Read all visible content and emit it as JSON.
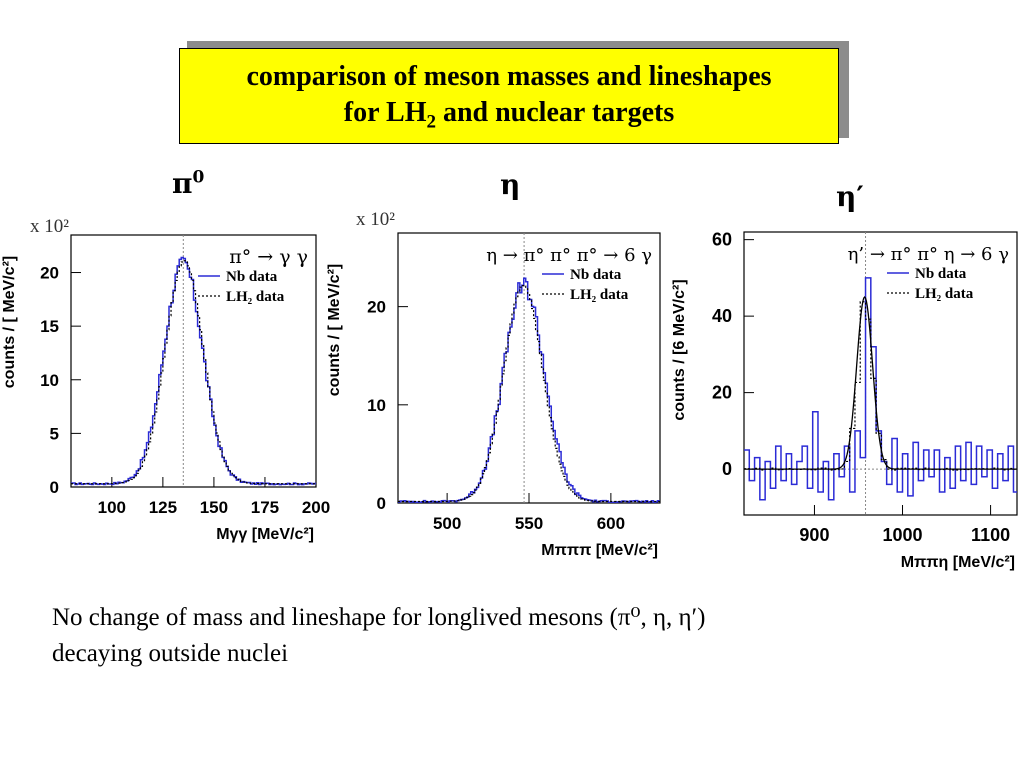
{
  "title": {
    "line1": "comparison of meson masses and lineshapes",
    "line2_pre": "for LH",
    "line2_sub": "2",
    "line2_post": " and nuclear targets"
  },
  "panel_labels": [
    {
      "base": "π",
      "sup": "0"
    },
    {
      "base": "η",
      "sup": ""
    },
    {
      "base": "η′",
      "sup": ""
    }
  ],
  "conclusion": {
    "line1": "No change of mass and lineshape for longlived mesons (π⁰, η, η′)",
    "line2": "decaying outside nuclei"
  },
  "colors": {
    "nb": "#2b2bd6",
    "lh2": "#000000",
    "fit": "#000000",
    "title_bg": "#ffff00"
  },
  "chart_data": [
    {
      "type": "line",
      "multiplier": "x 10²",
      "reaction": "π° → γ γ",
      "xlabel": "Mγγ [MeV/c²]",
      "ylabel": "counts / [ MeV/c²]",
      "xlim": [
        80,
        200
      ],
      "ylim": [
        0,
        23.5
      ],
      "xticks": [
        100,
        125,
        150,
        175,
        200
      ],
      "xtick_labels": [
        "100",
        "125",
        "150",
        "175",
        "200"
      ],
      "yticks": [
        0,
        5,
        10,
        15,
        20
      ],
      "ytick_labels": [
        "0",
        "5",
        "10",
        "15",
        "20"
      ],
      "peak_line": 135,
      "series": [
        {
          "name": "Nb data",
          "shape": "gauss",
          "mean": 135,
          "sigma": 9.5,
          "amp": 20.6,
          "bg": 0.3,
          "bin": 1,
          "noise": 0.35
        },
        {
          "name": "LH₂ data",
          "shape": "gauss",
          "mean": 135.5,
          "sigma": 9.3,
          "amp": 20.8,
          "bg": 0.3,
          "bin": 1
        }
      ]
    },
    {
      "type": "line",
      "multiplier": "x 10²",
      "reaction": "η → π° π° π° → 6 γ",
      "xlabel": "Mπππ [MeV/c²]",
      "ylabel": "counts / [ MeV/c²]",
      "xlim": [
        470,
        630
      ],
      "ylim": [
        0,
        27.5
      ],
      "xticks": [
        500,
        550,
        600
      ],
      "xtick_labels": [
        "500",
        "550",
        "600"
      ],
      "yticks": [
        0,
        10,
        20
      ],
      "ytick_labels": [
        "0",
        "10",
        "20"
      ],
      "peak_line": 547,
      "series": [
        {
          "name": "Nb data",
          "shape": "gauss",
          "mean": 547,
          "sigma": 12.5,
          "amp": 22,
          "bg": 0.15,
          "bin": 1.2,
          "noise": 0.5
        },
        {
          "name": "LH₂ data",
          "shape": "gauss",
          "mean": 546.5,
          "sigma": 12,
          "amp": 22,
          "bg": 0.15,
          "bin": 1.2
        }
      ]
    },
    {
      "type": "line",
      "multiplier": "",
      "reaction": "η’ → π° π° η → 6 γ",
      "xlabel": "Mππη [MeV/c²]",
      "ylabel": "counts / [6 MeV/c²]",
      "xlim": [
        820,
        1130
      ],
      "ylim": [
        -12,
        62
      ],
      "xticks": [
        900,
        1000,
        1100
      ],
      "xtick_labels": [
        "900",
        "1000",
        "1100"
      ],
      "yticks": [
        0,
        20,
        40,
        60
      ],
      "ytick_labels": [
        "0",
        "20",
        "40",
        "60"
      ],
      "peak_line": 958,
      "nb_bins": {
        "x0": 820,
        "width": 6,
        "values": [
          5,
          -3,
          3,
          -8,
          2,
          -5,
          6,
          -3,
          4,
          -4,
          2,
          6,
          -5,
          15,
          -6,
          2,
          -8,
          4,
          -2,
          6,
          -6,
          10,
          3,
          50,
          32,
          10,
          2,
          -4,
          8,
          -6,
          4,
          -7,
          7,
          -3,
          5,
          -2,
          5,
          -6,
          3,
          -5,
          6,
          -3,
          7,
          -4,
          6,
          -2,
          5,
          -5,
          4,
          -3,
          6,
          -6,
          9
        ]
      },
      "series": [
        {
          "name": "Nb data",
          "shape": "bins"
        },
        {
          "name": "LH₂ data",
          "shape": "gauss",
          "mean": 958,
          "sigma": 8.5,
          "amp": 44,
          "bg": 0,
          "bin": 6,
          "noise": 2
        },
        {
          "shape": "fit",
          "mean": 957,
          "sigma": 9,
          "amp": 45,
          "bg": 0
        }
      ]
    }
  ]
}
